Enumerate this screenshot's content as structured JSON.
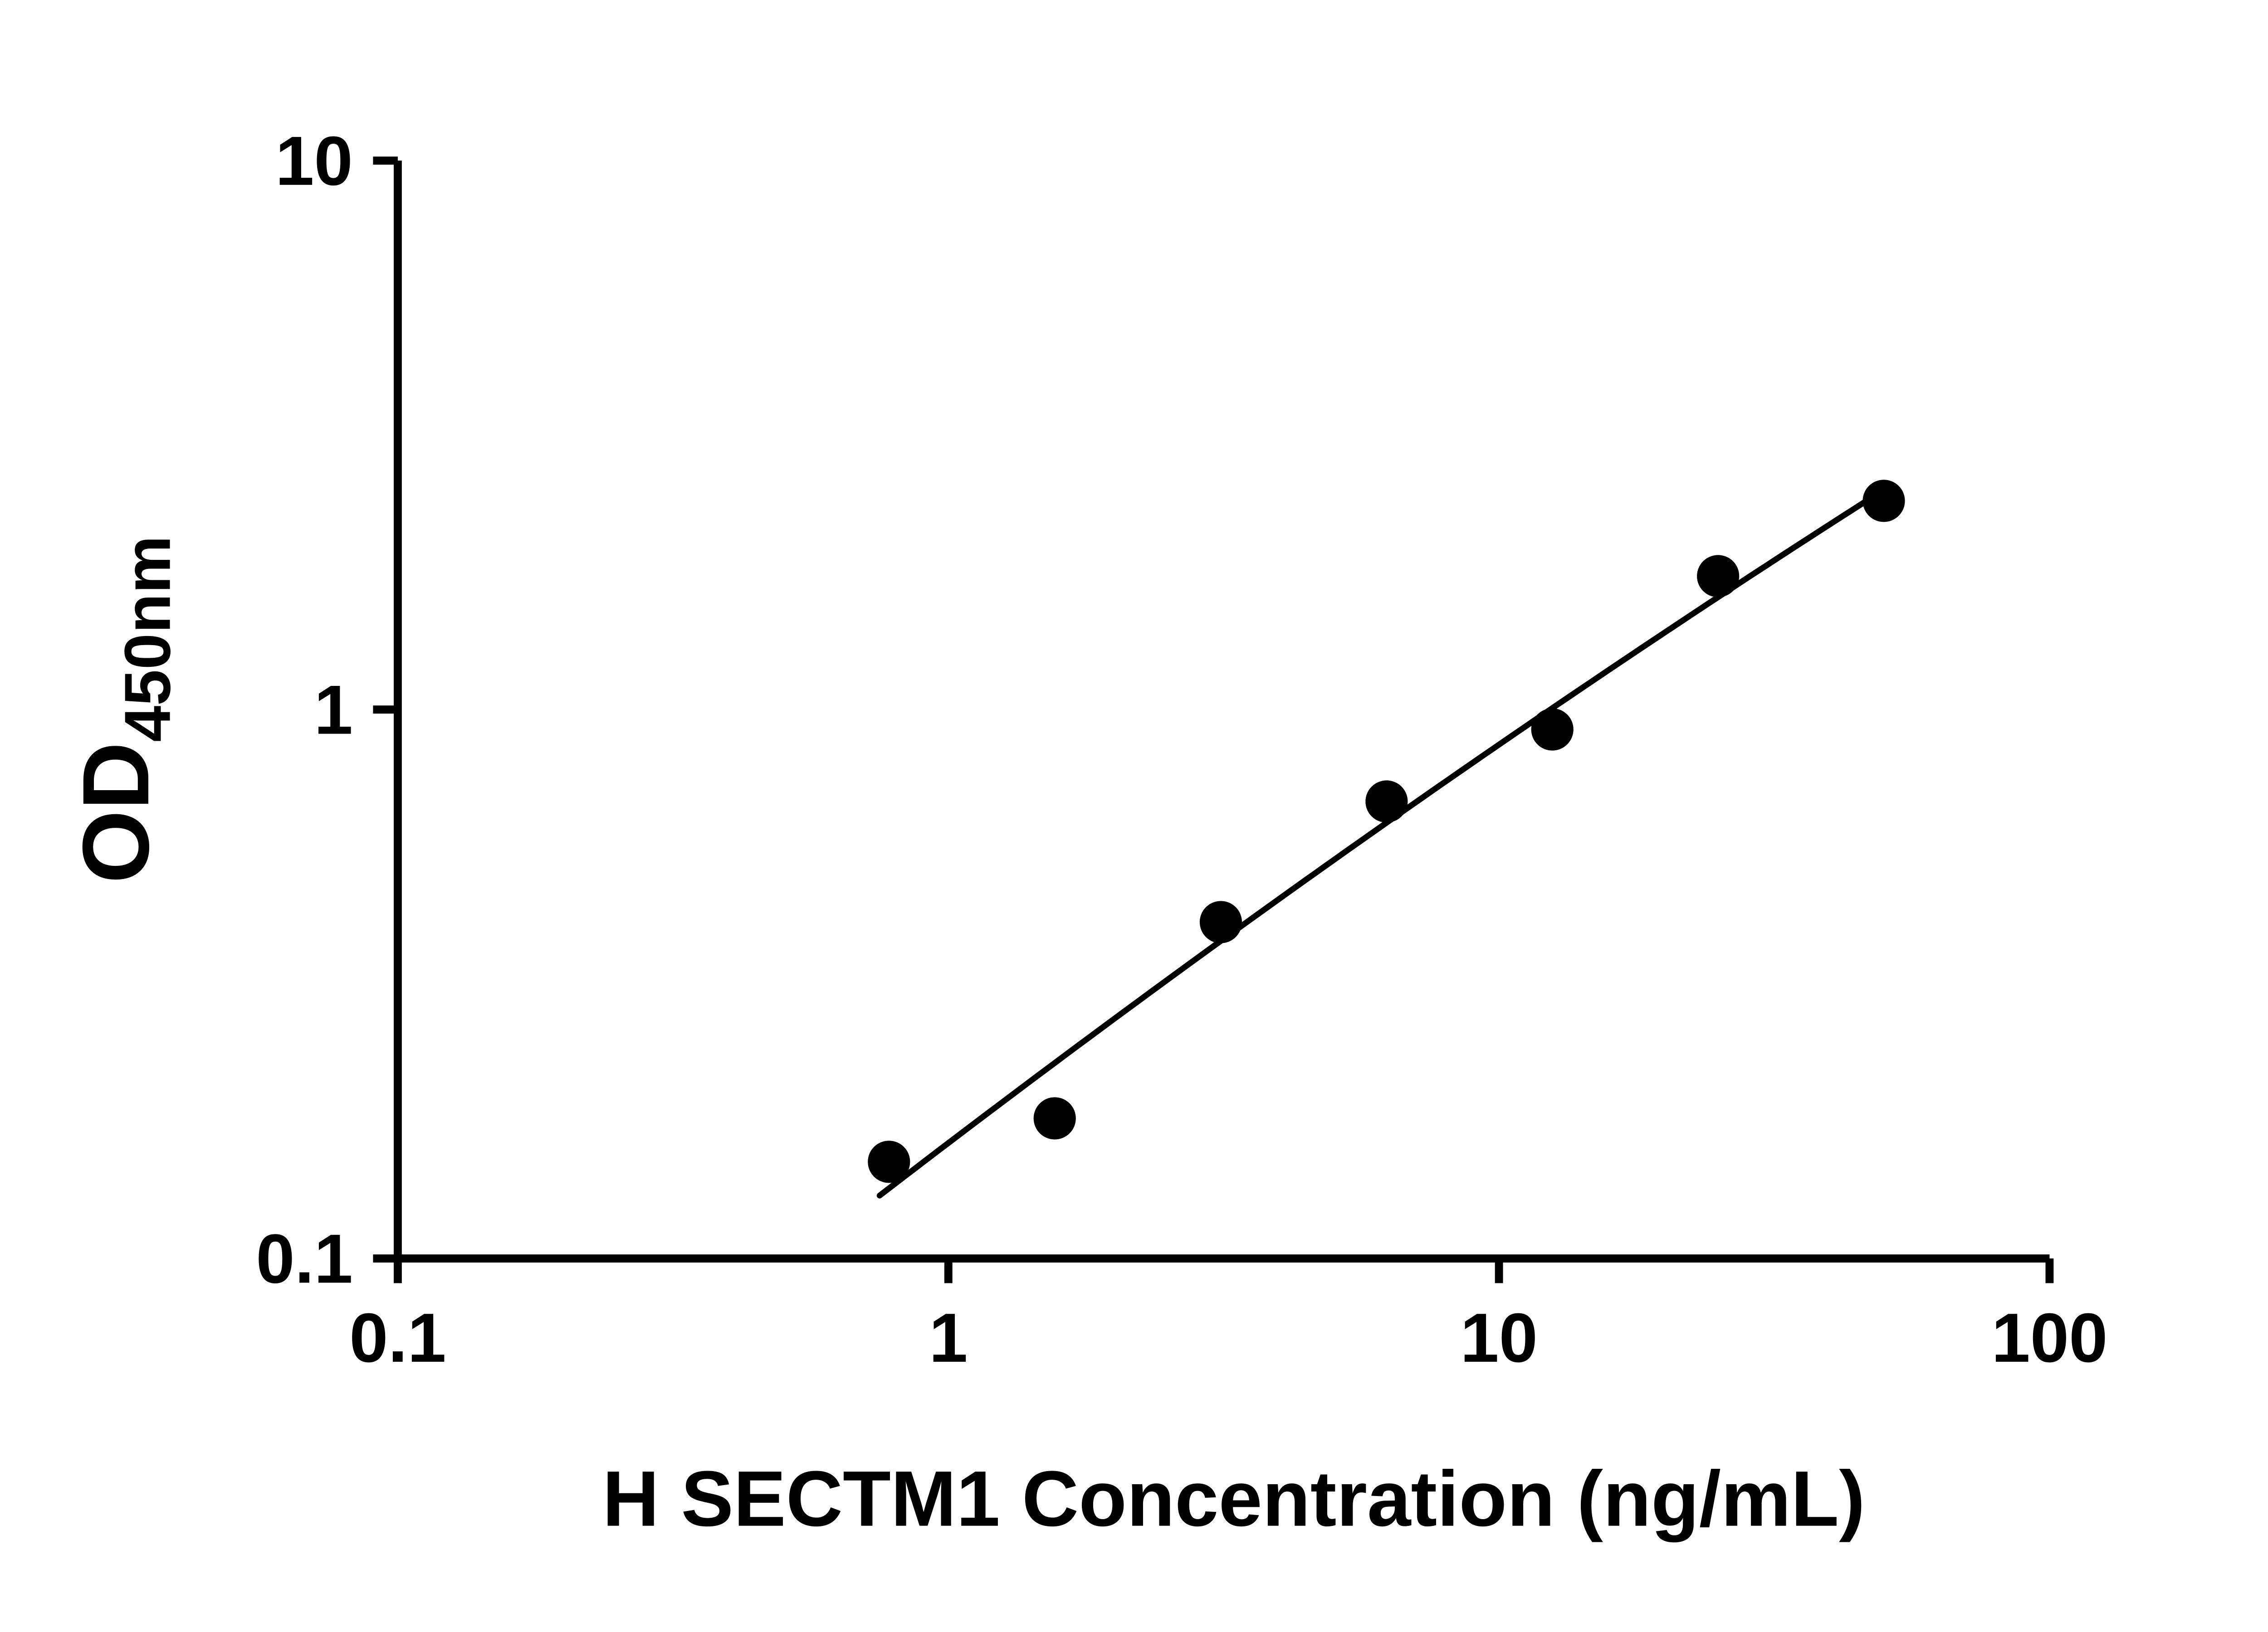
{
  "page": {
    "background": "#ffffff"
  },
  "chart_data": {
    "type": "scatter",
    "title": "",
    "xlabel": "H SECTM1 Concentration (ng/mL)",
    "ylabel": "OD450nm",
    "ylabel_main": "OD",
    "ylabel_sub": "450nm",
    "xscale": "log",
    "yscale": "log",
    "xlim": [
      0.1,
      100
    ],
    "ylim": [
      0.1,
      10
    ],
    "x_ticks": [
      0.1,
      1,
      10,
      100
    ],
    "x_tick_labels": [
      "0.1",
      "1",
      "10",
      "100"
    ],
    "y_ticks": [
      0.1,
      1,
      10
    ],
    "y_tick_labels": [
      "0.1",
      "1",
      "10"
    ],
    "grid": false,
    "legend": false,
    "series": [
      {
        "marker": "circle",
        "color": "#000000",
        "x": [
          0.78,
          1.56,
          3.125,
          6.25,
          12.5,
          25,
          50
        ],
        "y": [
          0.15,
          0.18,
          0.41,
          0.68,
          0.92,
          1.75,
          2.4
        ]
      }
    ],
    "fit_curve": {
      "type": "quadratic-loglog",
      "color": "#000000"
    },
    "colors": {
      "axis": "#000000",
      "text": "#000000",
      "marker": "#000000",
      "background": "#ffffff"
    }
  }
}
